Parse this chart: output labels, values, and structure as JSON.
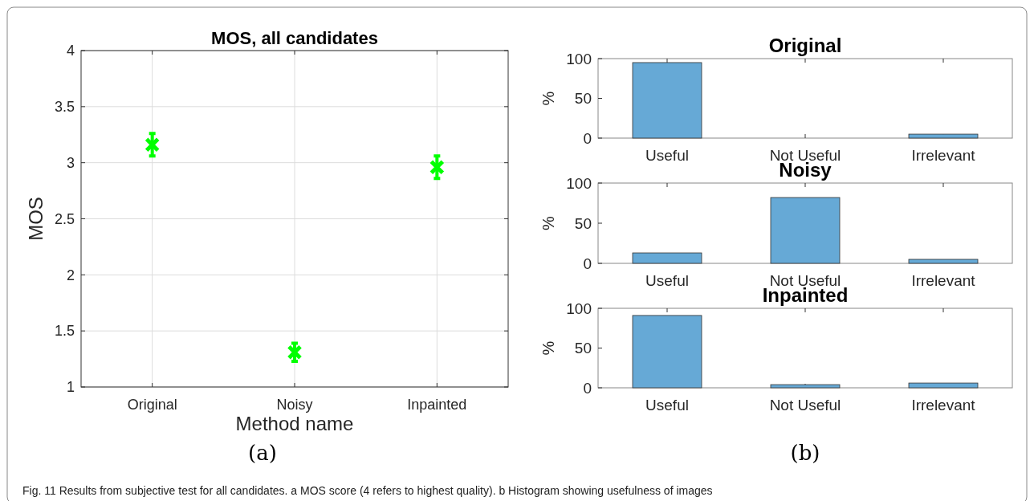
{
  "chart_data": [
    {
      "type": "scatter",
      "title": "MOS, all candidates",
      "xlabel": "Method name",
      "ylabel": "MOS",
      "categories": [
        "Original",
        "Noisy",
        "Inpainted"
      ],
      "series": [
        {
          "color": "#00ff00",
          "values": [
            3.16,
            1.31,
            2.96
          ],
          "errors": [
            0.1,
            0.08,
            0.1
          ]
        }
      ],
      "ylim": [
        1,
        4
      ],
      "yticks": [
        1,
        1.5,
        2,
        2.5,
        3,
        3.5,
        4
      ],
      "grid": true,
      "marker": "cross",
      "annotations": [
        "(a)",
        "Fig. 11 Results from subjective test for all candidates. a MOS score (4 refers to highest quality). b Histogram showing usefulness of images"
      ]
    },
    {
      "type": "bar",
      "title": "Original",
      "ylabel": "%",
      "categories": [
        "Useful",
        "Not Useful",
        "Irrelevant"
      ],
      "values": [
        95,
        0,
        5
      ],
      "color": "#66a9d6",
      "ylim": [
        0,
        100
      ],
      "yticks": [
        0,
        50,
        100
      ]
    },
    {
      "type": "bar",
      "title": "Noisy",
      "ylabel": "%",
      "categories": [
        "Useful",
        "Not Useful",
        "Irrelevant"
      ],
      "values": [
        13,
        82,
        5
      ],
      "color": "#66a9d6",
      "ylim": [
        0,
        100
      ],
      "yticks": [
        0,
        50,
        100
      ]
    },
    {
      "type": "bar",
      "title": "Inpainted",
      "ylabel": "%",
      "categories": [
        "Useful",
        "Not Useful",
        "Irrelevant"
      ],
      "values": [
        91,
        4,
        6
      ],
      "color": "#66a9d6",
      "ylim": [
        0,
        100
      ],
      "yticks": [
        0,
        50,
        100
      ],
      "annotations": [
        "(b)"
      ]
    }
  ]
}
